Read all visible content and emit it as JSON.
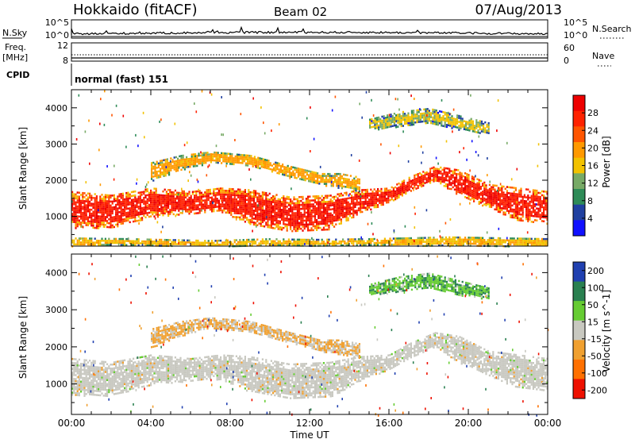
{
  "header": {
    "station": "Hokkaido (fitACF)",
    "beam": "Beam 02",
    "date": "07/Aug/2013"
  },
  "summary": {
    "nsky_label": "N.Sky",
    "nsearch_label": "N.Search",
    "noise_ticks": [
      "10^5",
      "10^0"
    ],
    "freq_label": "Freq.",
    "freq_unit": "[MHz]",
    "freq_ticks": [
      "12",
      "8"
    ],
    "nave_label": "Nave",
    "nave_ticks": [
      "60",
      "0"
    ],
    "cpid_label": "CPID",
    "cpid_value": "normal (fast) 151"
  },
  "axes": {
    "xlabel": "Time UT",
    "xticks": [
      "00:00",
      "04:00",
      "08:00",
      "12:00",
      "16:00",
      "20:00",
      "00:00"
    ],
    "ylabel": "Slant Range [km]",
    "yticks": [
      "1000",
      "2000",
      "3000",
      "4000"
    ]
  },
  "colors": {
    "power": [
      "#1010ff",
      "#2040a0",
      "#2e8b57",
      "#77aa66",
      "#f2c200",
      "#ff9900",
      "#ff5500",
      "#ff2200",
      "#ee0000"
    ],
    "velocity": [
      "#2040b0",
      "#2a8050",
      "#66cc33",
      "#c8c8c0",
      "#f0a030",
      "#ff7000",
      "#ee1000"
    ],
    "ground": "#c8c8c0"
  },
  "chart_data": [
    {
      "type": "heatmap",
      "title": "",
      "xlabel": "Time UT",
      "ylabel": "Slant Range [km]",
      "xlim": [
        0,
        24
      ],
      "ylim": [
        180,
        4500
      ],
      "colorbar": {
        "label": "Power [dB]",
        "ticks": [
          "4",
          "8",
          "12",
          "16",
          "20",
          "24",
          "28"
        ],
        "range": [
          0,
          30
        ]
      },
      "bands": [
        {
          "x": [
            0,
            2,
            4,
            6,
            7.5,
            9,
            11,
            13,
            14.5,
            16,
            17,
            18.3,
            19.5,
            21,
            22.5,
            24
          ],
          "y_low": [
            700,
            700,
            1000,
            1100,
            1150,
            800,
            600,
            650,
            1100,
            1400,
            1700,
            2000,
            1600,
            1250,
            900,
            800
          ],
          "y_high": [
            1700,
            1600,
            1800,
            1700,
            1800,
            1750,
            1550,
            1600,
            1750,
            1800,
            2100,
            2400,
            2300,
            1900,
            1800,
            1700
          ],
          "power": 28
        },
        {
          "x": [
            4,
            5.5,
            7,
            9,
            11,
            12.5,
            13.5,
            14.5
          ],
          "y_low": [
            2000,
            2300,
            2500,
            2400,
            2100,
            1900,
            1800,
            1700
          ],
          "y_high": [
            2500,
            2700,
            2800,
            2700,
            2400,
            2200,
            2200,
            2100
          ],
          "power": 20
        },
        {
          "x": [
            0,
            3,
            7,
            10,
            12,
            15,
            19,
            24
          ],
          "y_low": [
            200,
            220,
            200,
            200,
            200,
            220,
            200,
            200
          ],
          "y_high": [
            420,
            400,
            350,
            400,
            380,
            400,
            450,
            400
          ],
          "power": 18
        },
        {
          "x": [
            15,
            16.5,
            18,
            19.5,
            21
          ],
          "y_low": [
            3400,
            3500,
            3600,
            3400,
            3300
          ],
          "y_high": [
            3700,
            3900,
            4000,
            3800,
            3600
          ],
          "power": 16
        }
      ]
    },
    {
      "type": "heatmap",
      "title": "",
      "xlabel": "Time UT",
      "ylabel": "Slant Range [km]",
      "xlim": [
        0,
        24
      ],
      "ylim": [
        180,
        4500
      ],
      "colorbar": {
        "label": "Velocity [m s^-1]",
        "ticks": [
          "200",
          "100",
          "50",
          "15",
          "-15",
          "-50",
          "-100",
          "-200"
        ],
        "range": [
          -200,
          200
        ]
      },
      "bands": [
        {
          "x": [
            0,
            2,
            4,
            6,
            7.5,
            9,
            11,
            13,
            14.5,
            16,
            17,
            18.3,
            19.5,
            21,
            22.5,
            24
          ],
          "y_low": [
            700,
            700,
            1000,
            1100,
            1150,
            800,
            600,
            650,
            1100,
            1400,
            1700,
            2000,
            1600,
            1250,
            900,
            800
          ],
          "y_high": [
            1700,
            1600,
            1800,
            1700,
            1800,
            1750,
            1550,
            1600,
            1750,
            1800,
            2100,
            2400,
            2300,
            1900,
            1800,
            1700
          ],
          "velocity": 0
        },
        {
          "x": [
            4,
            5.5,
            7,
            9,
            11,
            12.5,
            13.5,
            14.5
          ],
          "y_low": [
            2000,
            2300,
            2500,
            2400,
            2100,
            1900,
            1800,
            1700
          ],
          "y_high": [
            2500,
            2700,
            2800,
            2700,
            2400,
            2200,
            2200,
            2100
          ],
          "velocity": -20
        },
        {
          "x": [
            15,
            16.5,
            18,
            19.5,
            21
          ],
          "y_low": [
            3400,
            3500,
            3600,
            3400,
            3300
          ],
          "y_high": [
            3700,
            3900,
            4000,
            3800,
            3600
          ],
          "velocity": 40
        }
      ]
    }
  ]
}
